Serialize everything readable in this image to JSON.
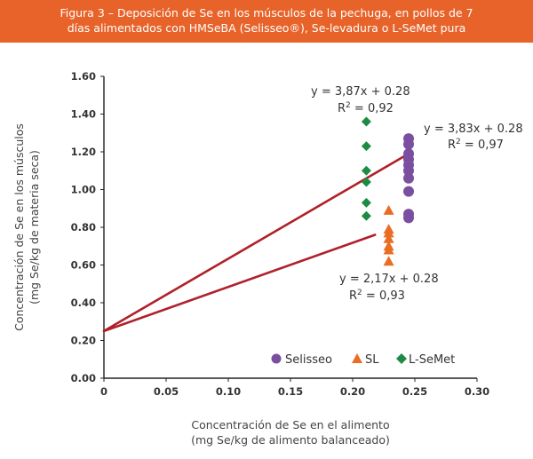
{
  "header": {
    "title_line1": "Figura 3 – Deposición de Se en los músculos de la pechuga, en pollos de 7",
    "title_line2": "días alimentados con HMSeBA (Selisseo®), Se-levadura o L-SeMet pura",
    "bg_color": "#e7632a"
  },
  "chart_data": {
    "type": "scatter",
    "title": "Figura 3 – Deposición de Se en los músculos de la pechuga, en pollos de 7 días alimentados con HMSeBA (Selisseo®), Se-levadura o L-SeMet pura",
    "xlabel_line1": "Concentración de Se en el alimento",
    "xlabel_line2": "(mg Se/kg de alimento balanceado)",
    "ylabel_line1": "Concentración de Se en los músculos",
    "ylabel_line2": "(mg Se/kg de materia seca)",
    "xlim": [
      0,
      0.3
    ],
    "ylim": [
      0,
      1.6
    ],
    "x_ticks": [
      "0",
      "0.05",
      "0.10",
      "0.15",
      "0.20",
      "0.25",
      "0.30"
    ],
    "y_ticks": [
      "0.00",
      "0.20",
      "0.40",
      "0.60",
      "0.80",
      "1.00",
      "1.20",
      "1.40",
      "1.60"
    ],
    "grid": false,
    "legend_position": "bottom-right",
    "series": [
      {
        "name": "Selisseo",
        "marker": "circle",
        "color": "#7b4fa0",
        "x": [
          0.245,
          0.245,
          0.245,
          0.245,
          0.245,
          0.245,
          0.245,
          0.245,
          0.245,
          0.245
        ],
        "y": [
          1.27,
          1.24,
          1.19,
          1.16,
          1.13,
          1.1,
          1.06,
          0.99,
          0.87,
          0.85
        ]
      },
      {
        "name": "SL",
        "marker": "triangle",
        "color": "#e96d23",
        "x": [
          0.229,
          0.229,
          0.229,
          0.229,
          0.229,
          0.229,
          0.229
        ],
        "y": [
          0.89,
          0.79,
          0.77,
          0.74,
          0.7,
          0.68,
          0.62
        ]
      },
      {
        "name": "L-SeMet",
        "marker": "diamond",
        "color": "#1e8b44",
        "x": [
          0.211,
          0.211,
          0.211,
          0.211,
          0.211,
          0.211
        ],
        "y": [
          1.36,
          1.23,
          1.1,
          1.04,
          0.93,
          0.86
        ]
      }
    ],
    "trend_lines": [
      {
        "x": [
          0,
          0.245
        ],
        "y": [
          0.25,
          1.19
        ],
        "color": "#b0202a"
      },
      {
        "x": [
          0,
          0.218
        ],
        "y": [
          0.25,
          0.76
        ],
        "color": "#b0202a"
      }
    ],
    "annotations": [
      {
        "line1": "y = 3,87x + 0.28",
        "line2_base": "R",
        "line2_sup": "2",
        "line2_rest": " = 0,92"
      },
      {
        "line1": "y = 3,83x + 0.28",
        "line2_base": "R",
        "line2_sup": "2",
        "line2_rest": " = 0,97"
      },
      {
        "line1": "y = 2,17x + 0.28",
        "line2_base": "R",
        "line2_sup": "2",
        "line2_rest": " = 0,93"
      }
    ]
  }
}
